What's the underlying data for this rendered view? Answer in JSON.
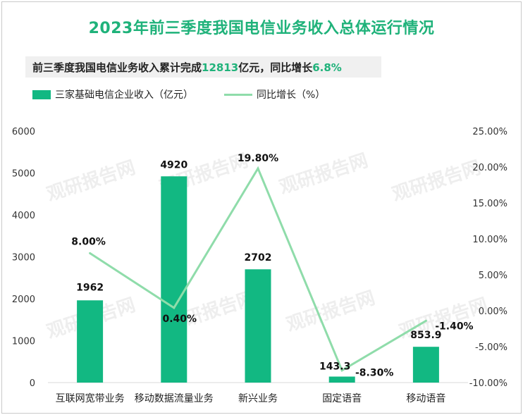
{
  "chart_data": {
    "type": "bar",
    "title": "2023年前三季度我国电信业务收入总体运行情况",
    "subtitle": {
      "prefix": "前三季度我国电信业务收入累计完成",
      "value": "12813",
      "middle": "亿元，同比增长",
      "growth": "6.8%"
    },
    "categories": [
      "互联网宽带业务",
      "移动数据流量业务",
      "新兴业务",
      "固定语音",
      "移动语音"
    ],
    "series": [
      {
        "name": "三家基础电信企业收入（亿元）",
        "kind": "bar",
        "axis": "left",
        "values": [
          1962,
          4920,
          2702,
          143.3,
          853.9
        ],
        "labels": [
          "1962",
          "4920",
          "2702",
          "143.3",
          "853.9"
        ]
      },
      {
        "name": "同比增长（%）",
        "kind": "line",
        "axis": "right",
        "values": [
          8.0,
          0.4,
          19.8,
          -8.3,
          -1.4
        ],
        "labels": [
          "8.00%",
          "0.40%",
          "19.80%",
          "-8.30%",
          "-1.40%"
        ]
      }
    ],
    "y_left": {
      "ylim": [
        0,
        6000
      ],
      "ticks": [
        "0",
        "1000",
        "2000",
        "3000",
        "4000",
        "5000",
        "6000"
      ]
    },
    "y_right": {
      "ylim": [
        -10,
        25
      ],
      "ticks": [
        "-10.00%",
        "-5.00%",
        "0.00%",
        "5.00%",
        "10.00%",
        "15.00%",
        "20.00%",
        "25.00%"
      ]
    },
    "legend": "top-left",
    "grid": false
  },
  "colors": {
    "bar": "#12b882",
    "line": "#8fdcaa",
    "title": "#1fb27a"
  }
}
